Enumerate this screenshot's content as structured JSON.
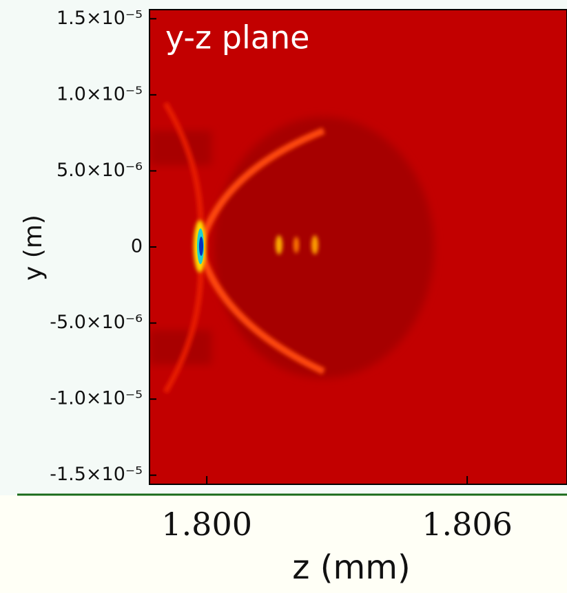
{
  "chart_data": {
    "type": "heatmap",
    "title": "y-z plane",
    "x_label": "z (mm)",
    "y_label": "y (m)",
    "xlim": [
      1.79868,
      1.8083
    ],
    "xticks": [
      {
        "value": 1.8,
        "label": "1.800"
      },
      {
        "value": 1.806,
        "label": "1.806"
      }
    ],
    "ylim": [
      -1.56e-05,
      1.56e-05
    ],
    "yticks": [
      {
        "value": 1.5e-05,
        "label": "1.5×10⁻⁵"
      },
      {
        "value": 1e-05,
        "label": "1.0×10⁻⁵"
      },
      {
        "value": 5e-06,
        "label": "5.0×10⁻⁶"
      },
      0,
      {
        "value": -5e-06,
        "label": "-5.0×10⁻⁶"
      },
      {
        "value": -1e-05,
        "label": "-1.0×10⁻⁵"
      },
      {
        "value": -1.5e-05,
        "label": "-1.5×10⁻⁵"
      }
    ]
  }
}
